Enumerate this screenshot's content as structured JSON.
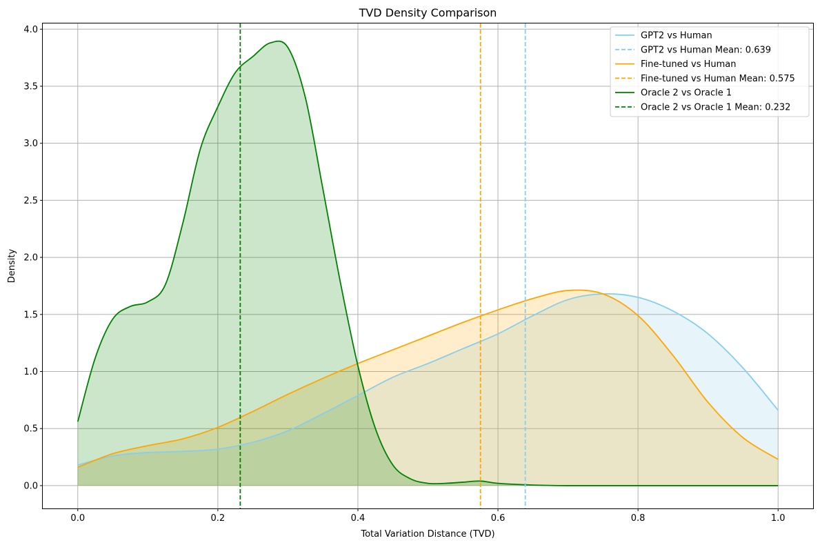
{
  "chart_data": {
    "type": "area",
    "title": "TVD Density Comparison",
    "xlabel": "Total Variation Distance (TVD)",
    "ylabel": "Density",
    "xlim": [
      -0.05,
      1.05
    ],
    "ylim": [
      -0.2,
      4.05
    ],
    "grid": true,
    "legend_position": "top-right",
    "x_ticks": [
      0.0,
      0.2,
      0.4,
      0.6,
      0.8,
      1.0
    ],
    "x_tick_labels": [
      "0.0",
      "0.2",
      "0.4",
      "0.6",
      "0.8",
      "1.0"
    ],
    "y_ticks": [
      0.0,
      0.5,
      1.0,
      1.5,
      2.0,
      2.5,
      3.0,
      3.5,
      4.0
    ],
    "y_tick_labels": [
      "0.0",
      "0.5",
      "1.0",
      "1.5",
      "2.0",
      "2.5",
      "3.0",
      "3.5",
      "4.0"
    ],
    "series": [
      {
        "name": "GPT2 vs Human",
        "mean_label": "GPT2 vs Human Mean: 0.639",
        "mean": 0.639,
        "color": "#87ceeb",
        "fill_color": "#87ceeb",
        "fill_opacity": 0.2,
        "x": [
          0.0,
          0.05,
          0.1,
          0.15,
          0.2,
          0.25,
          0.3,
          0.35,
          0.4,
          0.45,
          0.5,
          0.55,
          0.6,
          0.65,
          0.7,
          0.75,
          0.8,
          0.85,
          0.9,
          0.95,
          1.0
        ],
        "y": [
          0.18,
          0.26,
          0.29,
          0.3,
          0.32,
          0.38,
          0.48,
          0.63,
          0.79,
          0.95,
          1.07,
          1.2,
          1.33,
          1.49,
          1.63,
          1.68,
          1.65,
          1.53,
          1.33,
          1.03,
          0.66
        ]
      },
      {
        "name": "Fine-tuned vs Human",
        "mean_label": "Fine-tuned vs Human Mean: 0.575",
        "mean": 0.575,
        "color": "#ffa500",
        "fill_color": "#ffa500",
        "fill_opacity": 0.2,
        "x": [
          0.0,
          0.05,
          0.1,
          0.15,
          0.2,
          0.25,
          0.3,
          0.35,
          0.4,
          0.45,
          0.5,
          0.55,
          0.6,
          0.65,
          0.7,
          0.75,
          0.8,
          0.85,
          0.9,
          0.95,
          1.0
        ],
        "y": [
          0.16,
          0.28,
          0.35,
          0.41,
          0.51,
          0.65,
          0.8,
          0.94,
          1.07,
          1.19,
          1.31,
          1.43,
          1.54,
          1.64,
          1.71,
          1.68,
          1.49,
          1.14,
          0.73,
          0.42,
          0.23
        ]
      },
      {
        "name": "Oracle 2 vs Oracle 1",
        "mean_label": "Oracle 2 vs Oracle 1 Mean: 0.232",
        "mean": 0.232,
        "color": "#008000",
        "fill_color": "#008000",
        "fill_opacity": 0.2,
        "x": [
          0.0,
          0.025,
          0.05,
          0.075,
          0.1,
          0.125,
          0.15,
          0.175,
          0.2,
          0.225,
          0.25,
          0.275,
          0.3,
          0.325,
          0.35,
          0.375,
          0.4,
          0.425,
          0.45,
          0.475,
          0.5,
          0.525,
          0.55,
          0.575,
          0.6,
          0.65,
          0.7,
          0.8,
          0.9,
          1.0
        ],
        "y": [
          0.56,
          1.12,
          1.46,
          1.57,
          1.61,
          1.76,
          2.3,
          2.95,
          3.32,
          3.62,
          3.76,
          3.88,
          3.84,
          3.4,
          2.6,
          1.78,
          1.05,
          0.5,
          0.18,
          0.06,
          0.02,
          0.02,
          0.03,
          0.04,
          0.02,
          0.005,
          0.0,
          0.0,
          0.0,
          0.0
        ]
      }
    ]
  }
}
